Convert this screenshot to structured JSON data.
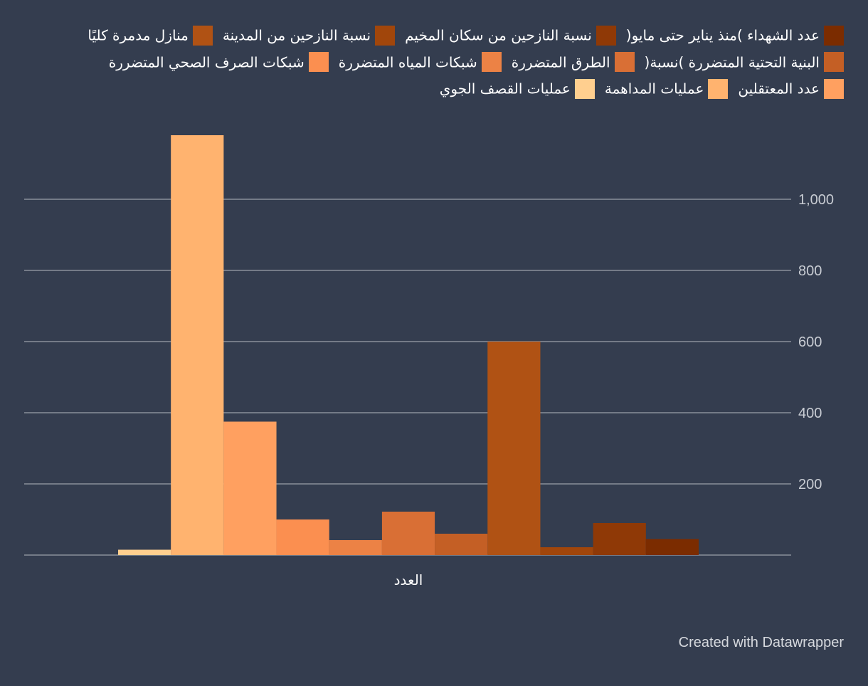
{
  "chart_data": {
    "type": "bar",
    "categories": [
      "العدد"
    ],
    "ylim": [
      0,
      1220
    ],
    "yticks": [
      200,
      400,
      600,
      800,
      1000
    ],
    "ytick_labels": [
      "200",
      "400",
      "600",
      "800",
      "1,000"
    ],
    "grid": true,
    "legend_position": "top",
    "series": [
      {
        "name": "عمليات القصف الجوي",
        "values": [
          15
        ],
        "color": "#ffcf8f"
      },
      {
        "name": "عمليات المداهمة",
        "values": [
          1180
        ],
        "color": "#ffb36f"
      },
      {
        "name": "عدد المعتقلين",
        "values": [
          375
        ],
        "color": "#ffa060"
      },
      {
        "name": "شبكات الصرف الصحي المتضررة",
        "values": [
          100
        ],
        "color": "#fb8f50"
      },
      {
        "name": "شبكات المياه المتضررة",
        "values": [
          42
        ],
        "color": "#ec8245"
      },
      {
        "name": "الطرق المتضررة",
        "values": [
          122
        ],
        "color": "#d96f35"
      },
      {
        "name": "البنية التحتية المتضررة )نسبة(",
        "values": [
          60
        ],
        "color": "#c45f25"
      },
      {
        "name": "منازل مدمرة كليًا",
        "values": [
          600
        ],
        "color": "#b05214"
      },
      {
        "name": "نسبة النازحين من المدينة",
        "values": [
          22
        ],
        "color": "#a1460b"
      },
      {
        "name": "نسبة النازحين من سكان المخيم",
        "values": [
          90
        ],
        "color": "#8f3906"
      },
      {
        "name": "عدد الشهداء )منذ يناير حتى مايو(",
        "values": [
          45
        ],
        "color": "#7b2c00"
      }
    ]
  },
  "credit": "Created with Datawrapper"
}
